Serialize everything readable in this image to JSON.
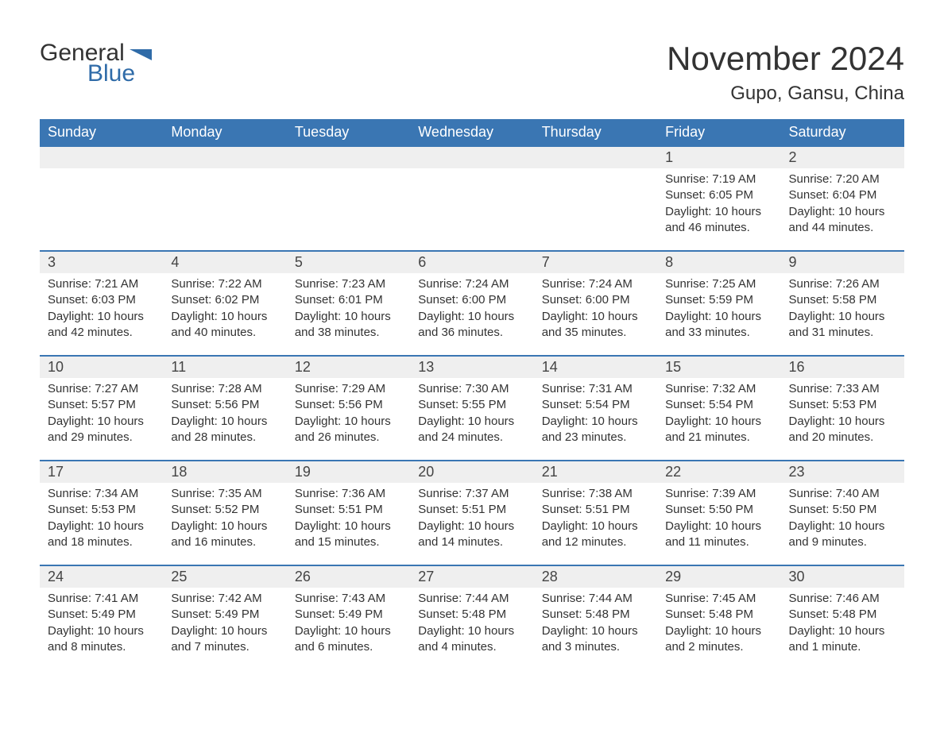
{
  "brand": {
    "word1": "General",
    "word2": "Blue"
  },
  "title": "November 2024",
  "location": "Gupo, Gansu, China",
  "colors": {
    "header_bg": "#3a76b3",
    "header_text": "#ffffff",
    "daynum_bg": "#efefef",
    "row_border": "#3a76b3",
    "body_text": "#333333",
    "brand_blue": "#2f6ba8",
    "page_bg": "#ffffff"
  },
  "typography": {
    "title_fontsize": 42,
    "location_fontsize": 24,
    "dayheader_fontsize": 18,
    "daynum_fontsize": 18,
    "cell_fontsize": 15
  },
  "days_of_week": [
    "Sunday",
    "Monday",
    "Tuesday",
    "Wednesday",
    "Thursday",
    "Friday",
    "Saturday"
  ],
  "weeks": [
    [
      null,
      null,
      null,
      null,
      null,
      {
        "n": "1",
        "sunrise": "Sunrise: 7:19 AM",
        "sunset": "Sunset: 6:05 PM",
        "daylight": "Daylight: 10 hours and 46 minutes."
      },
      {
        "n": "2",
        "sunrise": "Sunrise: 7:20 AM",
        "sunset": "Sunset: 6:04 PM",
        "daylight": "Daylight: 10 hours and 44 minutes."
      }
    ],
    [
      {
        "n": "3",
        "sunrise": "Sunrise: 7:21 AM",
        "sunset": "Sunset: 6:03 PM",
        "daylight": "Daylight: 10 hours and 42 minutes."
      },
      {
        "n": "4",
        "sunrise": "Sunrise: 7:22 AM",
        "sunset": "Sunset: 6:02 PM",
        "daylight": "Daylight: 10 hours and 40 minutes."
      },
      {
        "n": "5",
        "sunrise": "Sunrise: 7:23 AM",
        "sunset": "Sunset: 6:01 PM",
        "daylight": "Daylight: 10 hours and 38 minutes."
      },
      {
        "n": "6",
        "sunrise": "Sunrise: 7:24 AM",
        "sunset": "Sunset: 6:00 PM",
        "daylight": "Daylight: 10 hours and 36 minutes."
      },
      {
        "n": "7",
        "sunrise": "Sunrise: 7:24 AM",
        "sunset": "Sunset: 6:00 PM",
        "daylight": "Daylight: 10 hours and 35 minutes."
      },
      {
        "n": "8",
        "sunrise": "Sunrise: 7:25 AM",
        "sunset": "Sunset: 5:59 PM",
        "daylight": "Daylight: 10 hours and 33 minutes."
      },
      {
        "n": "9",
        "sunrise": "Sunrise: 7:26 AM",
        "sunset": "Sunset: 5:58 PM",
        "daylight": "Daylight: 10 hours and 31 minutes."
      }
    ],
    [
      {
        "n": "10",
        "sunrise": "Sunrise: 7:27 AM",
        "sunset": "Sunset: 5:57 PM",
        "daylight": "Daylight: 10 hours and 29 minutes."
      },
      {
        "n": "11",
        "sunrise": "Sunrise: 7:28 AM",
        "sunset": "Sunset: 5:56 PM",
        "daylight": "Daylight: 10 hours and 28 minutes."
      },
      {
        "n": "12",
        "sunrise": "Sunrise: 7:29 AM",
        "sunset": "Sunset: 5:56 PM",
        "daylight": "Daylight: 10 hours and 26 minutes."
      },
      {
        "n": "13",
        "sunrise": "Sunrise: 7:30 AM",
        "sunset": "Sunset: 5:55 PM",
        "daylight": "Daylight: 10 hours and 24 minutes."
      },
      {
        "n": "14",
        "sunrise": "Sunrise: 7:31 AM",
        "sunset": "Sunset: 5:54 PM",
        "daylight": "Daylight: 10 hours and 23 minutes."
      },
      {
        "n": "15",
        "sunrise": "Sunrise: 7:32 AM",
        "sunset": "Sunset: 5:54 PM",
        "daylight": "Daylight: 10 hours and 21 minutes."
      },
      {
        "n": "16",
        "sunrise": "Sunrise: 7:33 AM",
        "sunset": "Sunset: 5:53 PM",
        "daylight": "Daylight: 10 hours and 20 minutes."
      }
    ],
    [
      {
        "n": "17",
        "sunrise": "Sunrise: 7:34 AM",
        "sunset": "Sunset: 5:53 PM",
        "daylight": "Daylight: 10 hours and 18 minutes."
      },
      {
        "n": "18",
        "sunrise": "Sunrise: 7:35 AM",
        "sunset": "Sunset: 5:52 PM",
        "daylight": "Daylight: 10 hours and 16 minutes."
      },
      {
        "n": "19",
        "sunrise": "Sunrise: 7:36 AM",
        "sunset": "Sunset: 5:51 PM",
        "daylight": "Daylight: 10 hours and 15 minutes."
      },
      {
        "n": "20",
        "sunrise": "Sunrise: 7:37 AM",
        "sunset": "Sunset: 5:51 PM",
        "daylight": "Daylight: 10 hours and 14 minutes."
      },
      {
        "n": "21",
        "sunrise": "Sunrise: 7:38 AM",
        "sunset": "Sunset: 5:51 PM",
        "daylight": "Daylight: 10 hours and 12 minutes."
      },
      {
        "n": "22",
        "sunrise": "Sunrise: 7:39 AM",
        "sunset": "Sunset: 5:50 PM",
        "daylight": "Daylight: 10 hours and 11 minutes."
      },
      {
        "n": "23",
        "sunrise": "Sunrise: 7:40 AM",
        "sunset": "Sunset: 5:50 PM",
        "daylight": "Daylight: 10 hours and 9 minutes."
      }
    ],
    [
      {
        "n": "24",
        "sunrise": "Sunrise: 7:41 AM",
        "sunset": "Sunset: 5:49 PM",
        "daylight": "Daylight: 10 hours and 8 minutes."
      },
      {
        "n": "25",
        "sunrise": "Sunrise: 7:42 AM",
        "sunset": "Sunset: 5:49 PM",
        "daylight": "Daylight: 10 hours and 7 minutes."
      },
      {
        "n": "26",
        "sunrise": "Sunrise: 7:43 AM",
        "sunset": "Sunset: 5:49 PM",
        "daylight": "Daylight: 10 hours and 6 minutes."
      },
      {
        "n": "27",
        "sunrise": "Sunrise: 7:44 AM",
        "sunset": "Sunset: 5:48 PM",
        "daylight": "Daylight: 10 hours and 4 minutes."
      },
      {
        "n": "28",
        "sunrise": "Sunrise: 7:44 AM",
        "sunset": "Sunset: 5:48 PM",
        "daylight": "Daylight: 10 hours and 3 minutes."
      },
      {
        "n": "29",
        "sunrise": "Sunrise: 7:45 AM",
        "sunset": "Sunset: 5:48 PM",
        "daylight": "Daylight: 10 hours and 2 minutes."
      },
      {
        "n": "30",
        "sunrise": "Sunrise: 7:46 AM",
        "sunset": "Sunset: 5:48 PM",
        "daylight": "Daylight: 10 hours and 1 minute."
      }
    ]
  ]
}
